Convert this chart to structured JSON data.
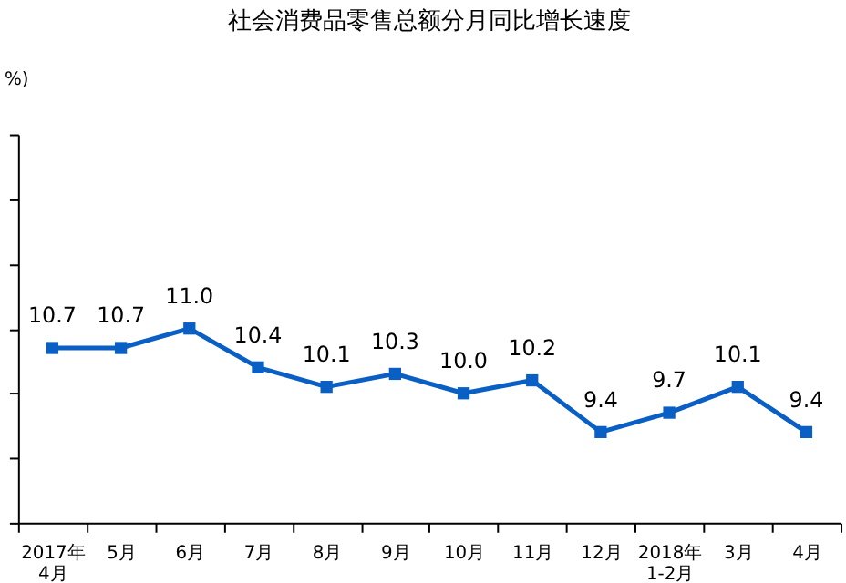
{
  "chart_data": {
    "type": "line",
    "title": "社会消费品零售总额分月同比增长速度",
    "ylabel": "%)",
    "categories": [
      "2017年\n4月",
      "5月",
      "6月",
      "7月",
      "8月",
      "9月",
      "10月",
      "11月",
      "12月",
      "2018年\n1-2月",
      "3月",
      "4月"
    ],
    "series": [
      {
        "color": "#0a5fc4",
        "values": [
          10.7,
          10.7,
          11.0,
          10.4,
          10.1,
          10.3,
          10.0,
          10.2,
          9.4,
          9.7,
          10.1,
          9.4
        ],
        "value_labels": [
          "10.7",
          "10.7",
          "11.0",
          "10.4",
          "10.1",
          "10.3",
          "10.0",
          "10.2",
          "9.4",
          "9.7",
          "10.1",
          "9.4"
        ]
      }
    ],
    "ylim": [
      8,
      14
    ],
    "tick_labels": "x",
    "grid": false,
    "marker": "square",
    "line_style": "solid"
  }
}
